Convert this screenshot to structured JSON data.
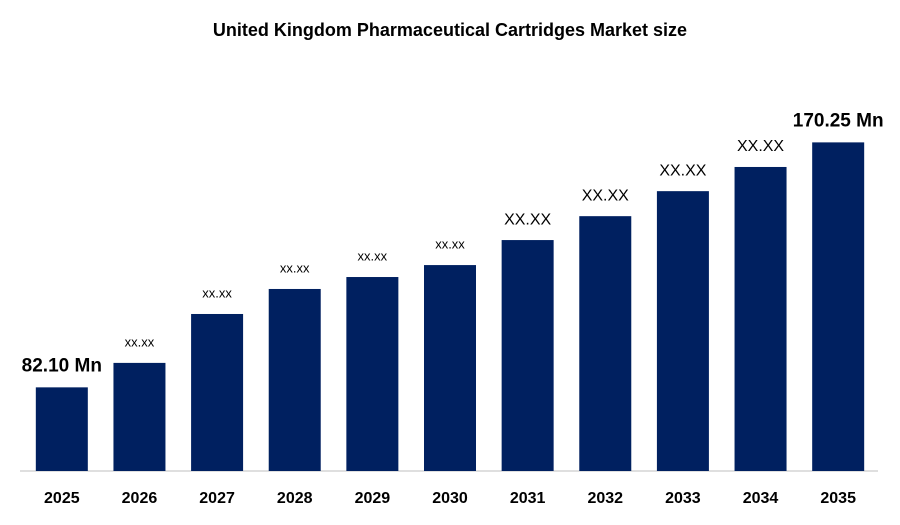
{
  "chart_data": {
    "type": "bar",
    "title": "United Kingdom Pharmaceutical Cartridges Market size",
    "categories": [
      "2025",
      "2026",
      "2027",
      "2028",
      "2029",
      "2030",
      "2031",
      "2032",
      "2033",
      "2034",
      "2035"
    ],
    "values": [
      82.1,
      90.9,
      108.5,
      117.5,
      121.8,
      126.1,
      135.1,
      143.7,
      152.7,
      161.4,
      170.25
    ],
    "value_labels": [
      "82.10 Mn",
      "xx.xx",
      "xx.xx",
      "xx.xx",
      "xx.xx",
      "xx.xx",
      "XX.XX",
      "XX.XX",
      "XX.XX",
      "XX.XX",
      "170.25 Mn"
    ],
    "color": "#002060",
    "ylim": [
      52,
      185.5
    ]
  }
}
